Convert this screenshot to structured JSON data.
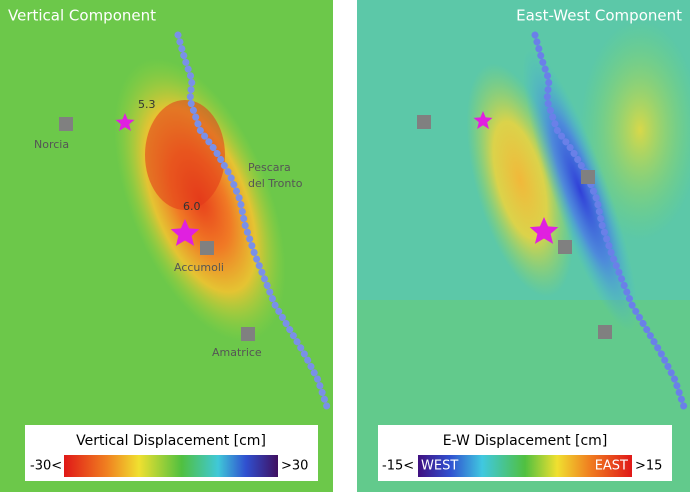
{
  "left_panel": {
    "title": "Vertical Component",
    "events": [
      {
        "magnitude": "5.3"
      },
      {
        "magnitude": "6.0"
      }
    ],
    "places": [
      {
        "name": "Norcia"
      },
      {
        "name_lines": [
          "Pescara",
          "del Tronto"
        ]
      },
      {
        "name": "Accumoli"
      },
      {
        "name": "Amatrice"
      }
    ],
    "legend": {
      "title": "Vertical Displacement [cm]",
      "min_label": "-30<",
      "max_label": ">30"
    }
  },
  "right_panel": {
    "title": "East-West Component",
    "legend": {
      "title": "E-W Displacement [cm]",
      "min_label": "-15<",
      "west_label": "WEST",
      "east_label": "EAST",
      "max_label": ">15"
    }
  }
}
